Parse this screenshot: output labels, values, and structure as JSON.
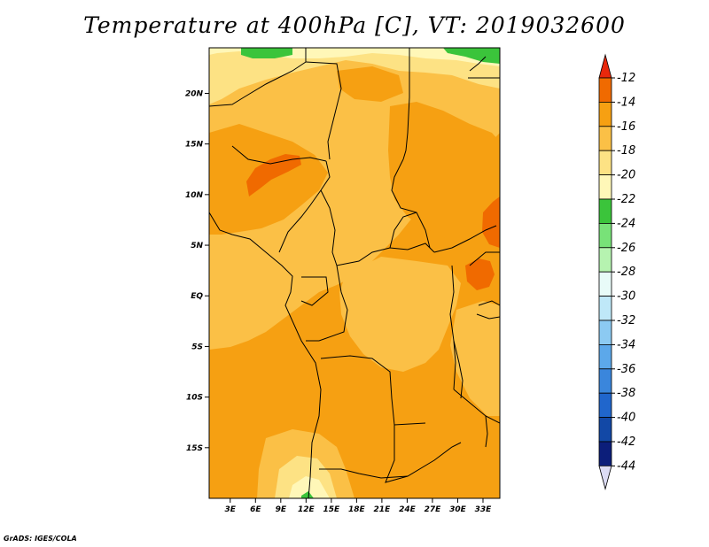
{
  "title": "Temperature at 400hPa [C], VT: 2019032600",
  "credit": "GrADS: IGES/COLA",
  "map": {
    "lat_range": [
      -20,
      24.5
    ],
    "lon_range": [
      0.5,
      35
    ],
    "lat_labels": [
      {
        "lat": 20,
        "text": "20N"
      },
      {
        "lat": 15,
        "text": "15N"
      },
      {
        "lat": 10,
        "text": "10N"
      },
      {
        "lat": 5,
        "text": "5N"
      },
      {
        "lat": 0,
        "text": "EQ"
      },
      {
        "lat": -5,
        "text": "5S"
      },
      {
        "lat": -10,
        "text": "10S"
      },
      {
        "lat": -15,
        "text": "15S"
      }
    ],
    "lon_labels": [
      {
        "lon": 3,
        "text": "3E"
      },
      {
        "lon": 6,
        "text": "6E"
      },
      {
        "lon": 9,
        "text": "9E"
      },
      {
        "lon": 12,
        "text": "12E"
      },
      {
        "lon": 15,
        "text": "15E"
      },
      {
        "lon": 18,
        "text": "18E"
      },
      {
        "lon": 21,
        "text": "21E"
      },
      {
        "lon": 24,
        "text": "24E"
      },
      {
        "lon": 27,
        "text": "27E"
      },
      {
        "lon": 30,
        "text": "30E"
      },
      {
        "lon": 33,
        "text": "33E"
      }
    ],
    "colors": {
      "t_12_14": "#f06a00",
      "t_14_16": "#f6a012",
      "t_16_18": "#fbc046",
      "t_18_20": "#fde284",
      "t_20_22": "#fff7b8",
      "t_22_24": "#3bc43b"
    }
  },
  "colorbar": {
    "labels": [
      "-12",
      "-14",
      "-16",
      "-18",
      "-20",
      "-22",
      "-24",
      "-26",
      "-28",
      "-30",
      "-32",
      "-34",
      "-36",
      "-38",
      "-40",
      "-42",
      "-44"
    ],
    "colors": [
      "#e8280c",
      "#f06a00",
      "#f6a012",
      "#fbc046",
      "#fde284",
      "#fff7b8",
      "#3bc43b",
      "#78e278",
      "#b6f3b0",
      "#e8fbf8",
      "#bfe8f8",
      "#8ccaf2",
      "#5ca8ea",
      "#3a86dc",
      "#2066cc",
      "#1248a6",
      "#0c1e7a",
      "#dcdcf4"
    ]
  }
}
